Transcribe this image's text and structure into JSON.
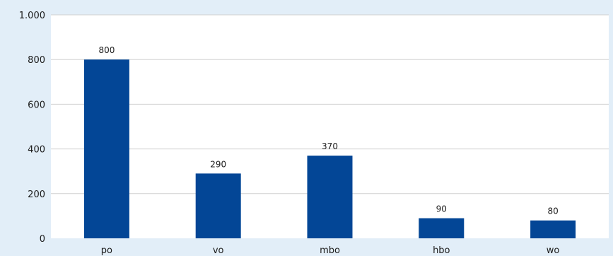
{
  "chart_data": {
    "type": "bar",
    "title": "",
    "xlabel": "",
    "ylabel": "",
    "categories": [
      "po",
      "vo",
      "mbo",
      "hbo",
      "wo"
    ],
    "values": [
      800,
      290,
      370,
      90,
      80
    ],
    "value_labels": [
      "800",
      "290",
      "370",
      "90",
      "80"
    ],
    "yticks": [
      0,
      200,
      400,
      600,
      800,
      1000
    ],
    "ytick_labels": [
      "0",
      "200",
      "400",
      "600",
      "800",
      "1.000"
    ],
    "ylim": [
      0,
      1000
    ],
    "grid": true,
    "legend": "none",
    "colors": {
      "bar": "#034696",
      "plot_background": "#ffffff",
      "page_background": "#e2eef8",
      "grid": "#d0d0d0"
    }
  }
}
